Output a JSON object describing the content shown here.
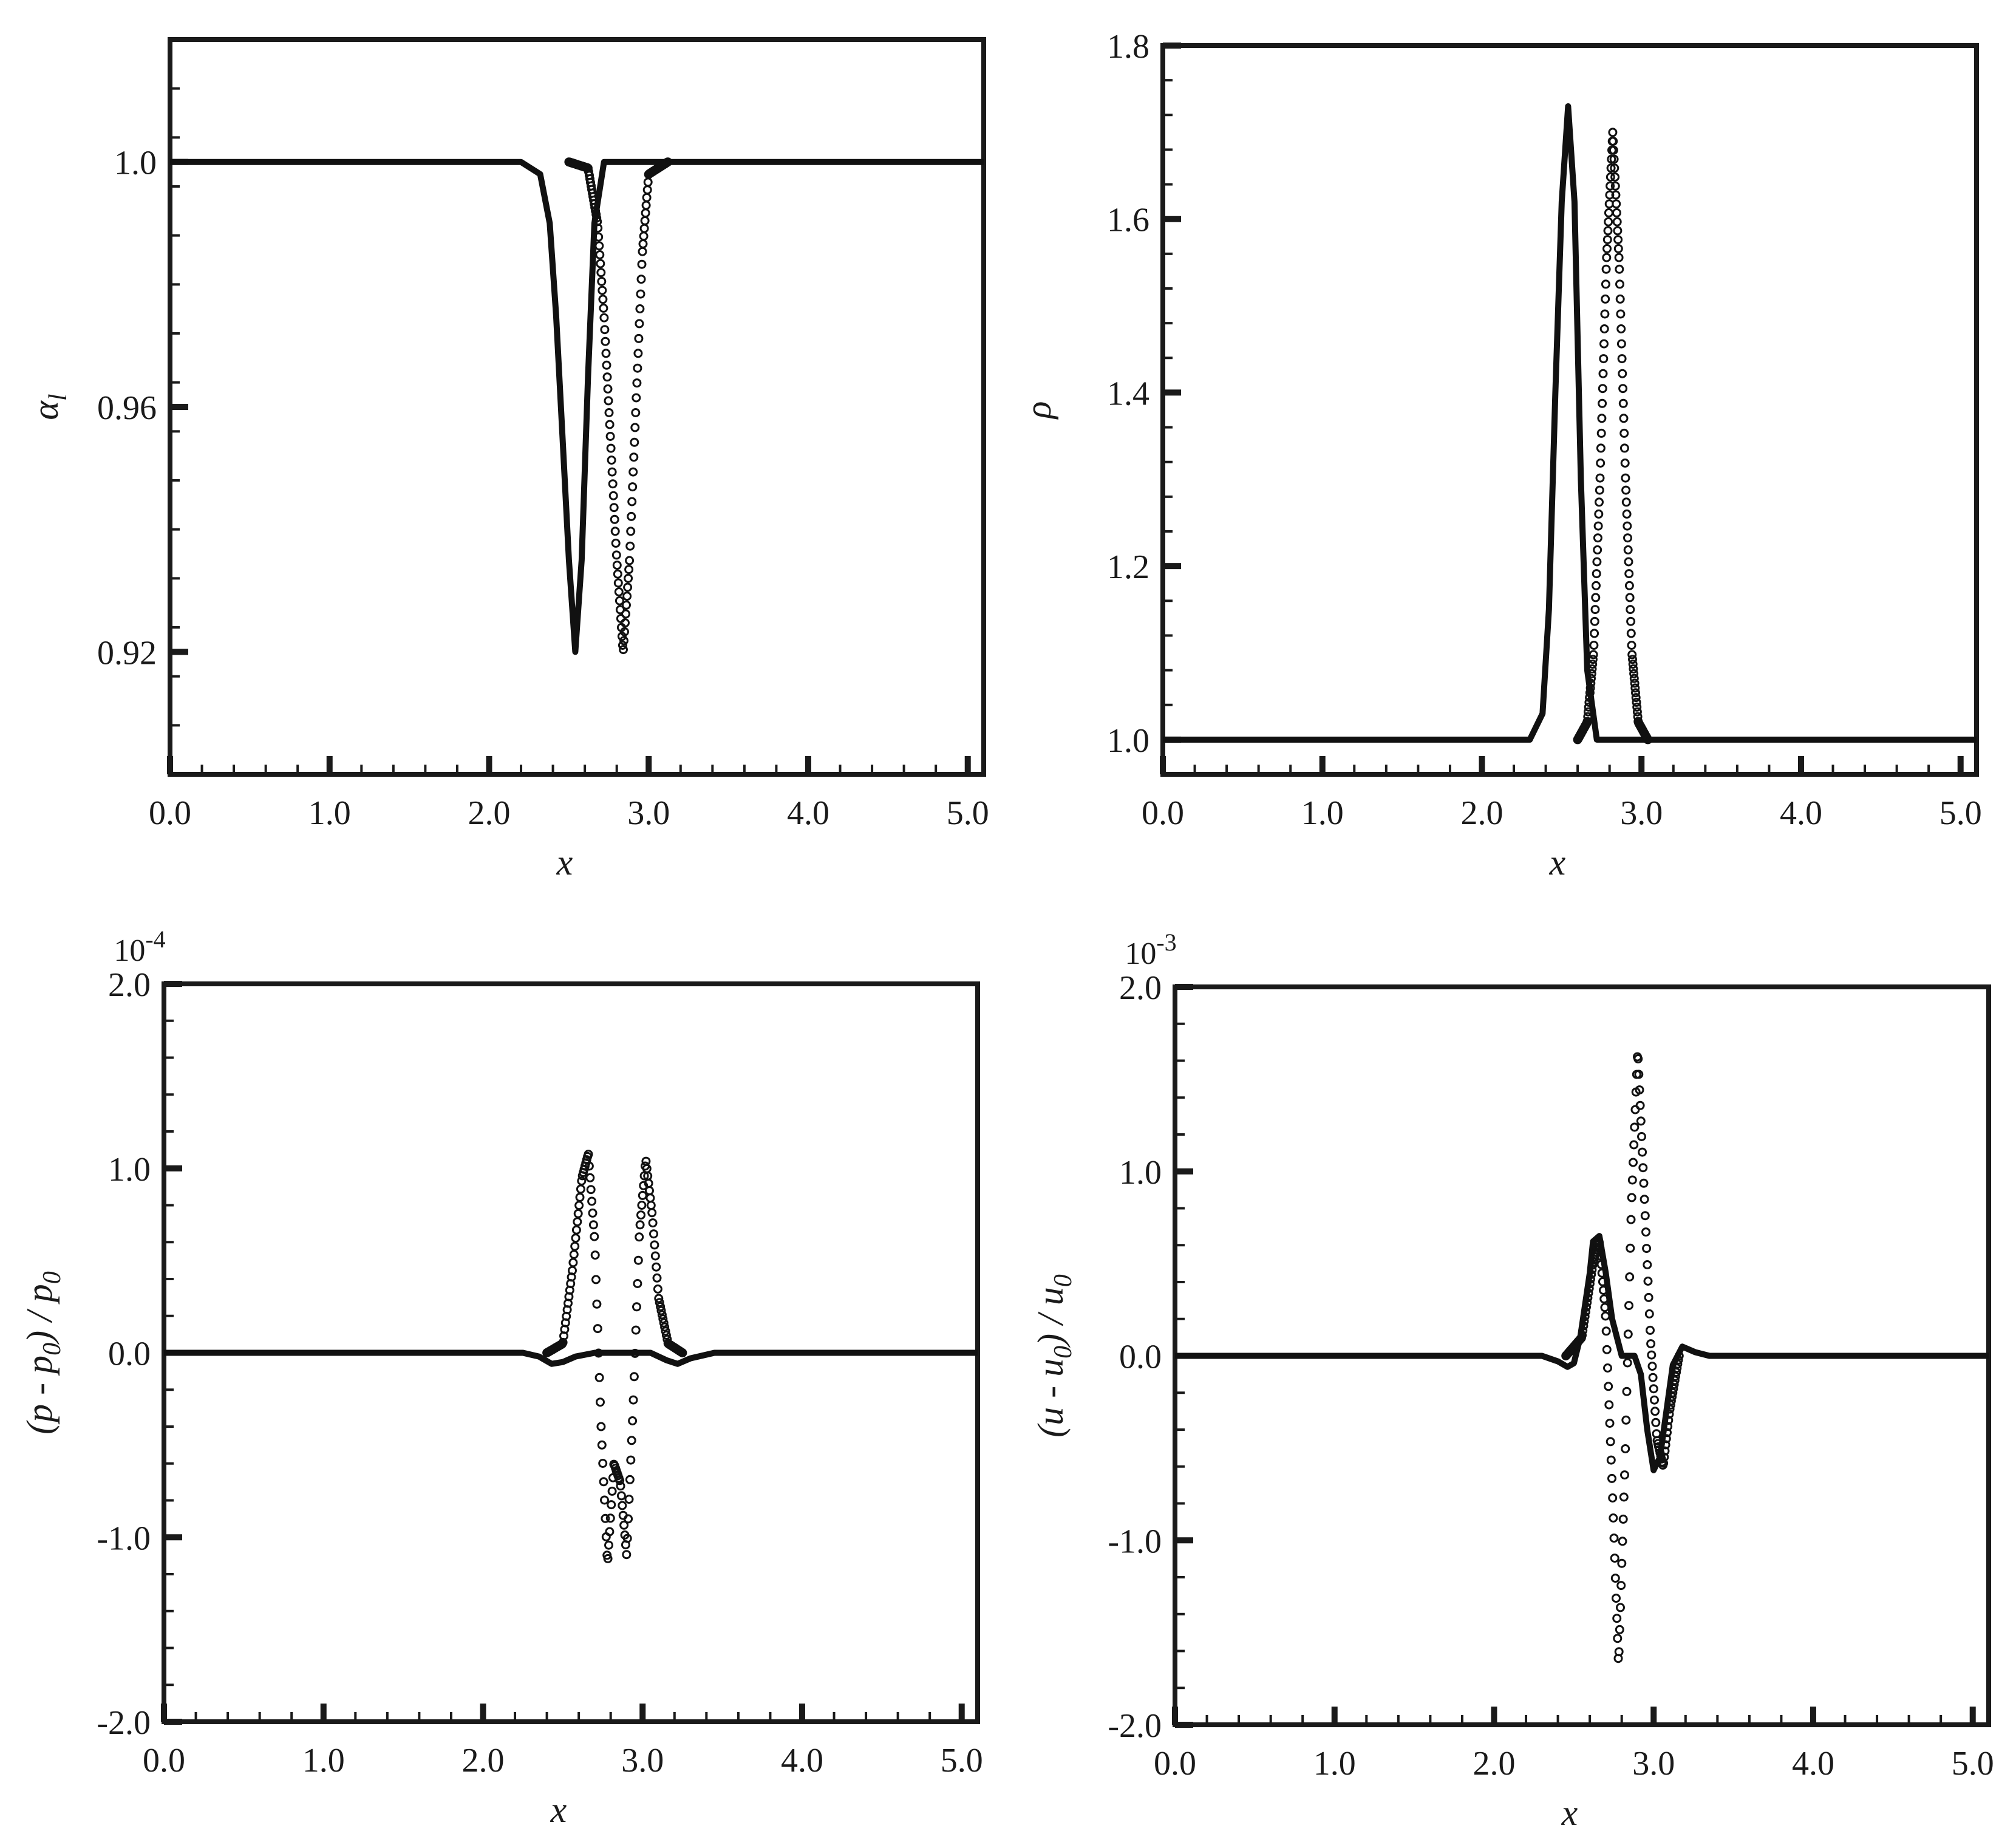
{
  "chart_data": [
    {
      "type": "line",
      "panel": "top-left",
      "xlabel": "x",
      "ylabel": "α_l",
      "xlim": [
        0,
        5.1
      ],
      "ylim": [
        0.9,
        1.02
      ],
      "xticks": [
        0,
        1,
        2,
        3,
        4,
        5
      ],
      "xtick_labels": [
        "0.0",
        "1.0",
        "2.0",
        "3.0",
        "4.0",
        "5.0"
      ],
      "yticks": [
        0.92,
        0.96,
        1.0
      ],
      "ytick_labels": [
        "0.92",
        "0.96",
        "1.0"
      ],
      "exponent": "",
      "series": [
        {
          "style": "solid",
          "x": [
            0.0,
            2.2,
            2.32,
            2.38,
            2.42,
            2.46,
            2.5,
            2.54,
            2.58,
            2.62,
            2.66,
            2.72,
            5.1
          ],
          "y": [
            1.0,
            1.0,
            0.998,
            0.99,
            0.975,
            0.955,
            0.935,
            0.92,
            0.935,
            0.965,
            0.99,
            1.0,
            1.0
          ]
        },
        {
          "style": "dotted",
          "x": [
            0.0,
            2.5,
            2.62,
            2.68,
            2.72,
            2.76,
            2.8,
            2.84,
            2.88,
            2.92,
            2.96,
            3.0,
            3.12,
            5.1
          ],
          "y": [
            1.0,
            1.0,
            0.999,
            0.99,
            0.975,
            0.955,
            0.935,
            0.92,
            0.935,
            0.96,
            0.985,
            0.998,
            1.0,
            1.0
          ]
        }
      ]
    },
    {
      "type": "line",
      "panel": "top-right",
      "xlabel": "x",
      "ylabel": "ρ",
      "xlim": [
        0,
        5.1
      ],
      "ylim": [
        0.96,
        1.8
      ],
      "xticks": [
        0,
        1,
        2,
        3,
        4,
        5
      ],
      "xtick_labels": [
        "0.0",
        "1.0",
        "2.0",
        "3.0",
        "4.0",
        "5.0"
      ],
      "yticks": [
        1.0,
        1.2,
        1.4,
        1.6,
        1.8
      ],
      "ytick_labels": [
        "1.0",
        "1.2",
        "1.4",
        "1.6",
        "1.8"
      ],
      "exponent": "",
      "series": [
        {
          "style": "solid",
          "x": [
            0.0,
            2.3,
            2.38,
            2.42,
            2.46,
            2.5,
            2.54,
            2.58,
            2.62,
            2.66,
            2.72,
            5.1
          ],
          "y": [
            1.0,
            1.0,
            1.03,
            1.15,
            1.4,
            1.62,
            1.73,
            1.62,
            1.3,
            1.08,
            1.0,
            1.0
          ]
        },
        {
          "style": "dotted",
          "x": [
            0.0,
            2.6,
            2.66,
            2.7,
            2.74,
            2.78,
            2.82,
            2.86,
            2.9,
            2.94,
            2.98,
            3.04,
            5.1
          ],
          "y": [
            1.0,
            1.0,
            1.02,
            1.1,
            1.3,
            1.55,
            1.7,
            1.55,
            1.3,
            1.1,
            1.02,
            1.0,
            1.0
          ]
        }
      ]
    },
    {
      "type": "line",
      "panel": "bottom-left",
      "xlabel": "x",
      "ylabel": "(p - p_0) / p_0",
      "xlim": [
        0,
        5.1
      ],
      "ylim": [
        -2.0,
        2.0
      ],
      "xticks": [
        0,
        1,
        2,
        3,
        4,
        5
      ],
      "xtick_labels": [
        "0.0",
        "1.0",
        "2.0",
        "3.0",
        "4.0",
        "5.0"
      ],
      "yticks": [
        -2.0,
        -1.0,
        0.0,
        1.0,
        2.0
      ],
      "ytick_labels": [
        "-2.0",
        "-1.0",
        "0.0",
        "1.0",
        "2.0"
      ],
      "exponent": "10-4",
      "series": [
        {
          "style": "solid",
          "x": [
            0.0,
            2.25,
            2.35,
            2.43,
            2.5,
            2.58,
            2.7,
            2.9,
            3.05,
            3.15,
            3.22,
            3.3,
            3.45,
            5.1
          ],
          "y": [
            0.0,
            0.0,
            -0.02,
            -0.06,
            -0.05,
            -0.02,
            0.0,
            0.0,
            0.0,
            -0.04,
            -0.06,
            -0.03,
            0.0,
            0.0
          ]
        },
        {
          "style": "dotted",
          "x": [
            0.0,
            2.4,
            2.5,
            2.56,
            2.62,
            2.66,
            2.7,
            2.74,
            2.78,
            2.82,
            2.86,
            2.9,
            2.94,
            2.98,
            3.02,
            3.06,
            3.1,
            3.16,
            3.25,
            5.1
          ],
          "y": [
            0.0,
            0.0,
            0.05,
            0.45,
            0.95,
            1.08,
            0.6,
            -0.4,
            -1.15,
            -0.6,
            -0.7,
            -1.1,
            -0.3,
            0.65,
            1.05,
            0.75,
            0.3,
            0.05,
            0.0,
            0.0
          ]
        }
      ]
    },
    {
      "type": "line",
      "panel": "bottom-right",
      "xlabel": "x",
      "ylabel": "(u - u_0) / u_0",
      "xlim": [
        0,
        5.1
      ],
      "ylim": [
        -2.0,
        2.0
      ],
      "xticks": [
        0,
        1,
        2,
        3,
        4,
        5
      ],
      "xtick_labels": [
        "0.0",
        "1.0",
        "2.0",
        "3.0",
        "4.0",
        "5.0"
      ],
      "yticks": [
        -2.0,
        -1.0,
        0.0,
        1.0,
        2.0
      ],
      "ytick_labels": [
        "-2.0",
        "-1.0",
        "0.0",
        "1.0",
        "2.0"
      ],
      "exponent": "10-3",
      "series": [
        {
          "style": "solid",
          "x": [
            0.0,
            2.3,
            2.4,
            2.46,
            2.5,
            2.54,
            2.6,
            2.62,
            2.66,
            2.7,
            2.74,
            2.8,
            2.84,
            2.88,
            2.92,
            2.96,
            3.0,
            3.04,
            3.08,
            3.12,
            3.18,
            3.26,
            3.35,
            5.1
          ],
          "y": [
            0.0,
            0.0,
            -0.03,
            -0.06,
            -0.04,
            0.1,
            0.45,
            0.62,
            0.65,
            0.45,
            0.2,
            0.0,
            0.0,
            0.0,
            -0.1,
            -0.4,
            -0.62,
            -0.55,
            -0.3,
            -0.05,
            0.05,
            0.02,
            0.0,
            0.0
          ]
        },
        {
          "style": "dotted",
          "x": [
            0.0,
            2.45,
            2.55,
            2.62,
            2.66,
            2.7,
            2.74,
            2.78,
            2.82,
            2.86,
            2.9,
            2.94,
            2.98,
            3.02,
            3.06,
            3.1,
            3.16,
            5.1
          ],
          "y": [
            0.0,
            0.0,
            0.1,
            0.5,
            0.62,
            0.2,
            -0.7,
            -1.68,
            -0.6,
            0.8,
            1.66,
            0.9,
            0.1,
            -0.45,
            -0.6,
            -0.3,
            0.0,
            0.0
          ]
        }
      ]
    }
  ]
}
